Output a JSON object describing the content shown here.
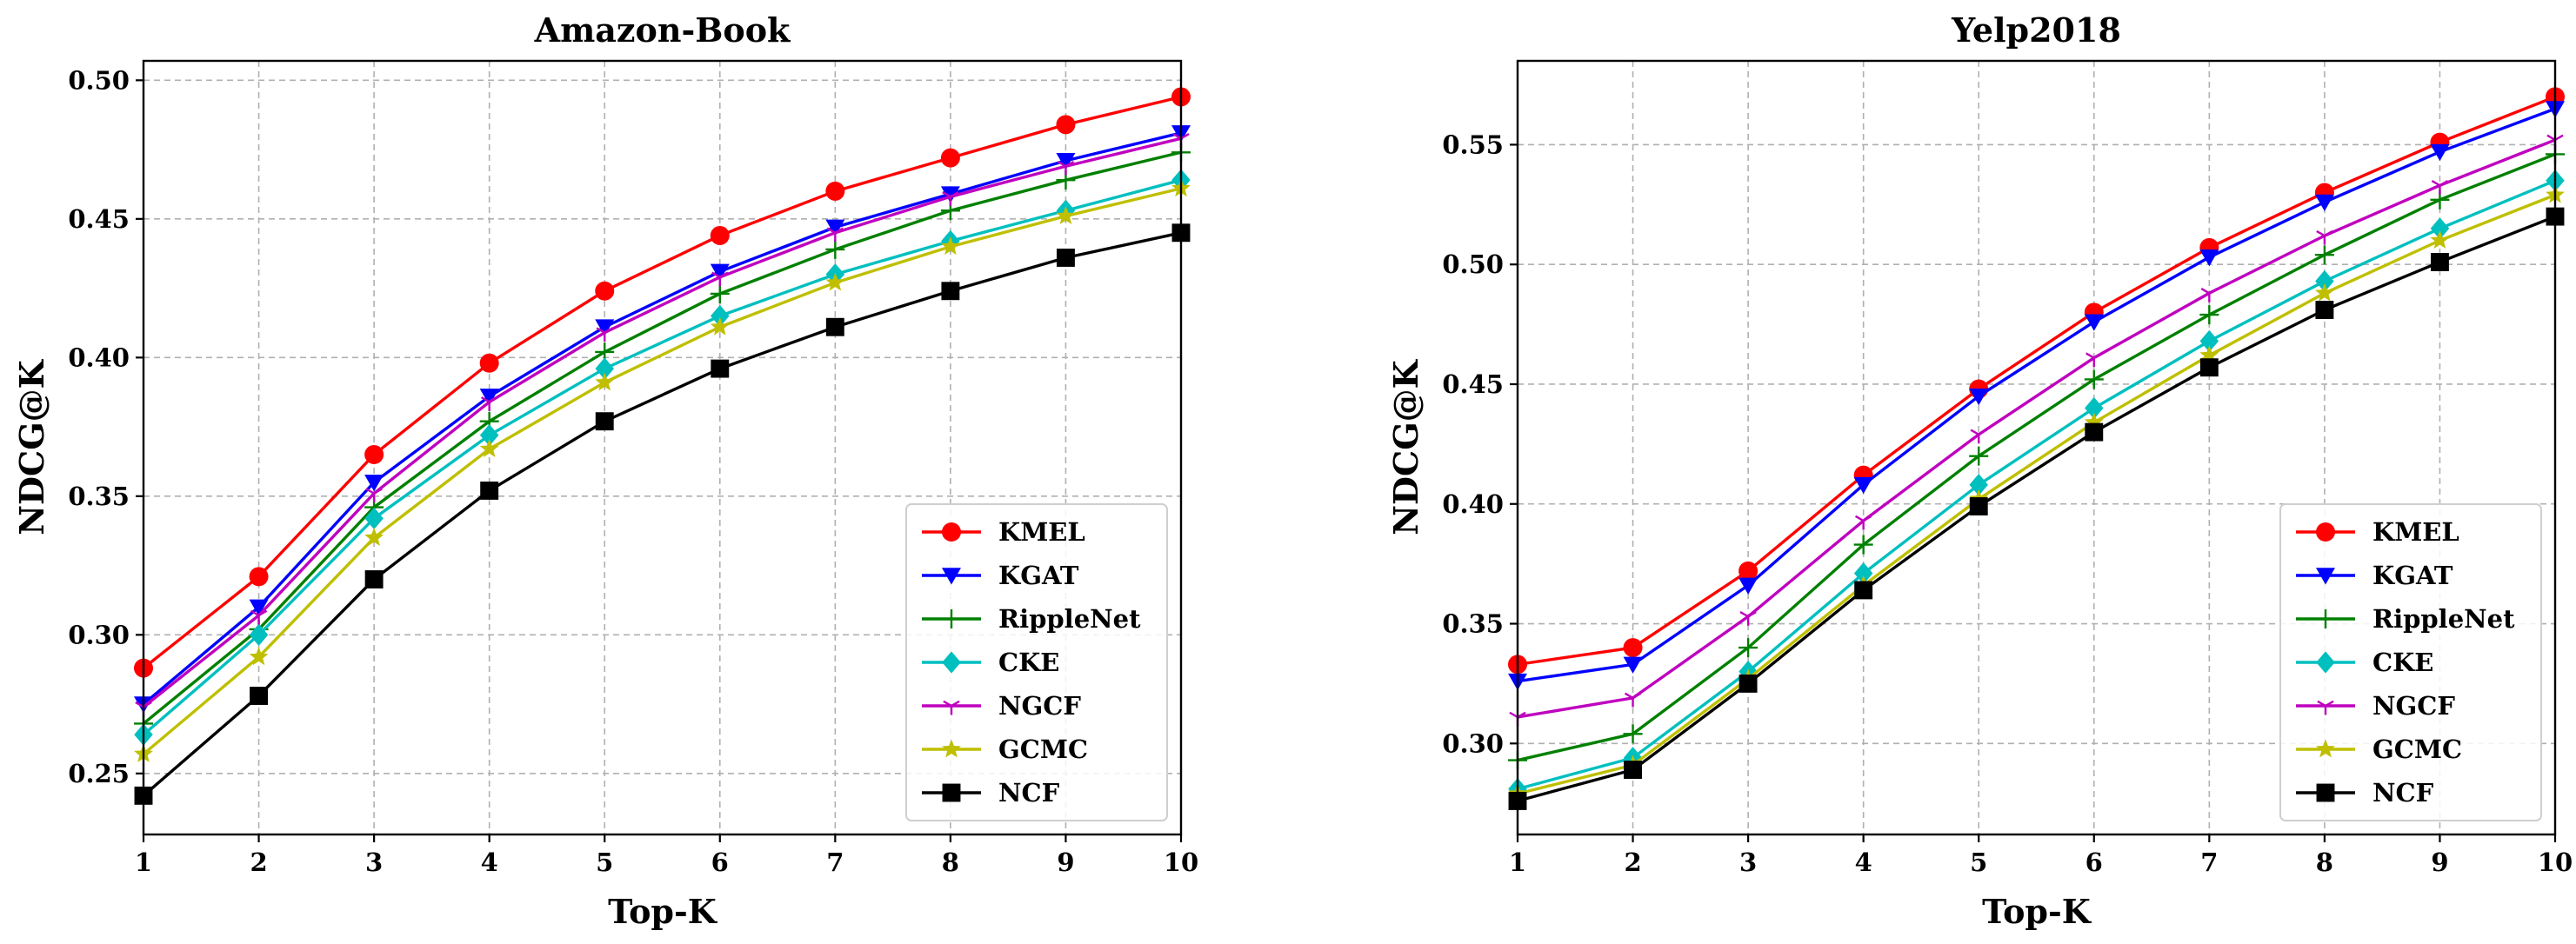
{
  "chart_data": [
    {
      "type": "line",
      "title": "Amazon-Book",
      "xlabel": "Top-K",
      "ylabel": "NDCG@K",
      "x": [
        1,
        2,
        3,
        4,
        5,
        6,
        7,
        8,
        9,
        10
      ],
      "xlim": [
        1,
        10
      ],
      "ylim": [
        0.228,
        0.507
      ],
      "yticks": [
        0.25,
        0.3,
        0.35,
        0.4,
        0.45,
        0.5
      ],
      "ytick_labels": [
        "0.25",
        "0.30",
        "0.35",
        "0.40",
        "0.45",
        "0.50"
      ],
      "xtick_labels": [
        "1",
        "2",
        "3",
        "4",
        "5",
        "6",
        "7",
        "8",
        "9",
        "10"
      ],
      "grid": true,
      "legend_position": "lower-right",
      "series": [
        {
          "name": "KMEL",
          "color": "#ff0000",
          "marker": "circle",
          "values": [
            0.288,
            0.321,
            0.365,
            0.398,
            0.424,
            0.444,
            0.46,
            0.472,
            0.484,
            0.494
          ]
        },
        {
          "name": "KGAT",
          "color": "#0000ff",
          "marker": "triangle-down",
          "values": [
            0.275,
            0.31,
            0.355,
            0.386,
            0.411,
            0.431,
            0.447,
            0.459,
            0.471,
            0.481
          ]
        },
        {
          "name": "RippleNet",
          "color": "#008000",
          "marker": "plus",
          "values": [
            0.268,
            0.302,
            0.346,
            0.377,
            0.402,
            0.423,
            0.439,
            0.453,
            0.464,
            0.474
          ]
        },
        {
          "name": "CKE",
          "color": "#00bfbf",
          "marker": "diamond",
          "values": [
            0.264,
            0.3,
            0.342,
            0.372,
            0.396,
            0.415,
            0.43,
            0.442,
            0.453,
            0.464
          ]
        },
        {
          "name": "NGCF",
          "color": "#bf00bf",
          "marker": "tri-down",
          "values": [
            0.274,
            0.307,
            0.351,
            0.384,
            0.409,
            0.429,
            0.445,
            0.458,
            0.469,
            0.479
          ]
        },
        {
          "name": "GCMC",
          "color": "#bfbf00",
          "marker": "star",
          "values": [
            0.257,
            0.292,
            0.335,
            0.367,
            0.391,
            0.411,
            0.427,
            0.44,
            0.451,
            0.461
          ]
        },
        {
          "name": "NCF",
          "color": "#000000",
          "marker": "square",
          "values": [
            0.242,
            0.278,
            0.32,
            0.352,
            0.377,
            0.396,
            0.411,
            0.424,
            0.436,
            0.445
          ]
        }
      ]
    },
    {
      "type": "line",
      "title": "Yelp2018",
      "xlabel": "Top-K",
      "ylabel": "NDCG@K",
      "x": [
        1,
        2,
        3,
        4,
        5,
        6,
        7,
        8,
        9,
        10
      ],
      "xlim": [
        1,
        10
      ],
      "ylim": [
        0.262,
        0.585
      ],
      "yticks": [
        0.3,
        0.35,
        0.4,
        0.45,
        0.5,
        0.55
      ],
      "ytick_labels": [
        "0.30",
        "0.35",
        "0.40",
        "0.45",
        "0.50",
        "0.55"
      ],
      "xtick_labels": [
        "1",
        "2",
        "3",
        "4",
        "5",
        "6",
        "7",
        "8",
        "9",
        "10"
      ],
      "grid": true,
      "legend_position": "lower-right",
      "series": [
        {
          "name": "KMEL",
          "color": "#ff0000",
          "marker": "circle",
          "values": [
            0.333,
            0.34,
            0.372,
            0.412,
            0.448,
            0.48,
            0.507,
            0.53,
            0.551,
            0.57
          ]
        },
        {
          "name": "KGAT",
          "color": "#0000ff",
          "marker": "triangle-down",
          "values": [
            0.326,
            0.333,
            0.366,
            0.408,
            0.445,
            0.476,
            0.503,
            0.526,
            0.547,
            0.565
          ]
        },
        {
          "name": "RippleNet",
          "color": "#008000",
          "marker": "plus",
          "values": [
            0.293,
            0.304,
            0.34,
            0.383,
            0.42,
            0.452,
            0.479,
            0.504,
            0.527,
            0.546
          ]
        },
        {
          "name": "CKE",
          "color": "#00bfbf",
          "marker": "diamond",
          "values": [
            0.281,
            0.294,
            0.33,
            0.371,
            0.408,
            0.44,
            0.468,
            0.493,
            0.515,
            0.535
          ]
        },
        {
          "name": "NGCF",
          "color": "#bf00bf",
          "marker": "tri-down",
          "values": [
            0.311,
            0.319,
            0.353,
            0.393,
            0.429,
            0.461,
            0.488,
            0.512,
            0.533,
            0.552
          ]
        },
        {
          "name": "GCMC",
          "color": "#bfbf00",
          "marker": "star",
          "values": [
            0.279,
            0.291,
            0.327,
            0.366,
            0.402,
            0.434,
            0.462,
            0.488,
            0.51,
            0.529
          ]
        },
        {
          "name": "NCF",
          "color": "#000000",
          "marker": "square",
          "values": [
            0.276,
            0.289,
            0.325,
            0.364,
            0.399,
            0.43,
            0.457,
            0.481,
            0.501,
            0.52
          ]
        }
      ]
    }
  ]
}
